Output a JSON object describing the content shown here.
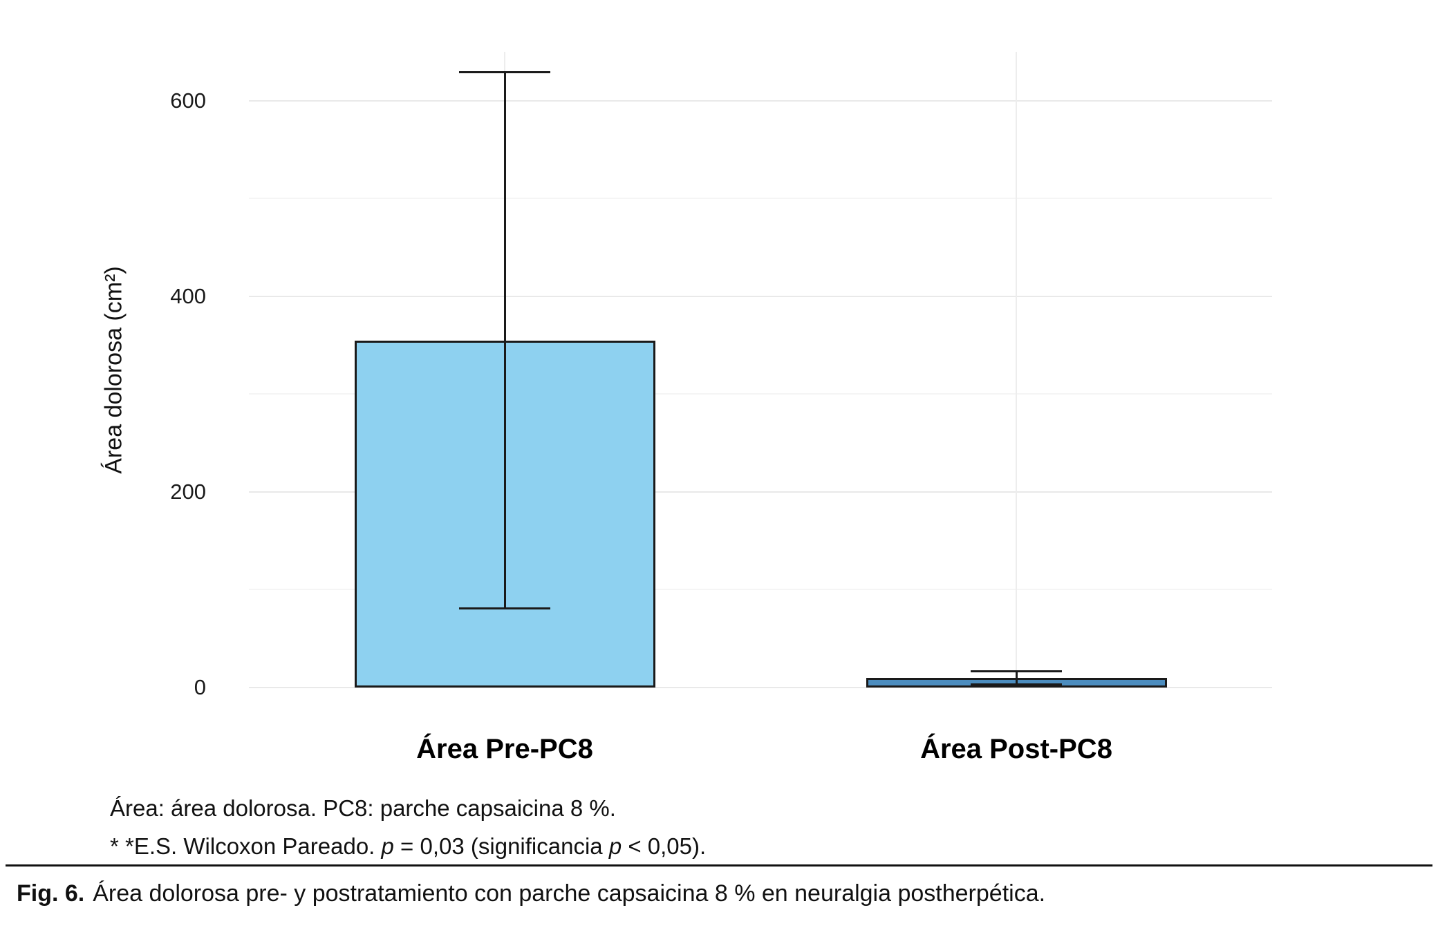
{
  "footnotes": {
    "line1": "Área: área dolorosa. PC8: parche capsaicina 8 %.",
    "line2_segments": [
      {
        "text": "* *E.S. Wilcoxon Pareado. ",
        "italic": false
      },
      {
        "text": "p",
        "italic": true
      },
      {
        "text": " = 0,03 (significancia ",
        "italic": false
      },
      {
        "text": "p",
        "italic": true
      },
      {
        "text": " < 0,05).",
        "italic": false
      }
    ]
  },
  "caption": {
    "label": "Fig. 6.",
    "text": "Área dolorosa pre- y postratamiento con parche capsaicina 8 % en neuralgia postherpética."
  },
  "chart_data": {
    "type": "bar",
    "categories": [
      "Área Pre-PC8",
      "Área Post-PC8"
    ],
    "values": [
      355,
      10
    ],
    "error_bars": [
      {
        "lower": 80,
        "upper": 630
      },
      {
        "lower": 2,
        "upper": 18
      }
    ],
    "bar_colors": [
      "#8ED1F0",
      "#4C8DBF"
    ],
    "bar_outline_color": "#1a1a1a",
    "title": "",
    "xlabel": "",
    "ylabel": "Área dolorosa (cm²)",
    "ylim": [
      0,
      650
    ],
    "yticks": [
      0,
      200,
      400,
      600
    ],
    "yticks_minor": [
      100,
      300,
      500
    ],
    "grid": true,
    "legend": false
  }
}
